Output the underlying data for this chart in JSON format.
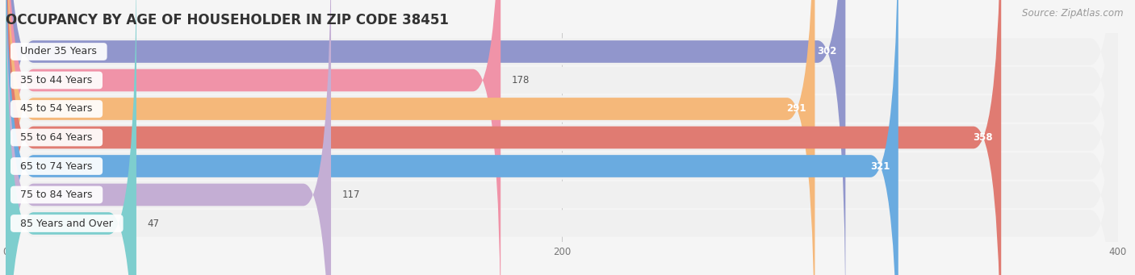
{
  "title": "OCCUPANCY BY AGE OF HOUSEHOLDER IN ZIP CODE 38451",
  "source": "Source: ZipAtlas.com",
  "categories": [
    "Under 35 Years",
    "35 to 44 Years",
    "45 to 54 Years",
    "55 to 64 Years",
    "65 to 74 Years",
    "75 to 84 Years",
    "85 Years and Over"
  ],
  "values": [
    302,
    178,
    291,
    358,
    321,
    117,
    47
  ],
  "bar_colors": [
    "#9196cc",
    "#f093a8",
    "#f5b87a",
    "#e07b72",
    "#6aabe0",
    "#c4aed4",
    "#7ecece"
  ],
  "bar_bg_color": "#e8e8e8",
  "row_bg_color": "#f0f0f0",
  "background_color": "#f5f5f5",
  "xlim_max": 400,
  "xticks": [
    0,
    200,
    400
  ],
  "title_fontsize": 12,
  "label_fontsize": 9,
  "value_fontsize": 8.5,
  "source_fontsize": 8.5
}
